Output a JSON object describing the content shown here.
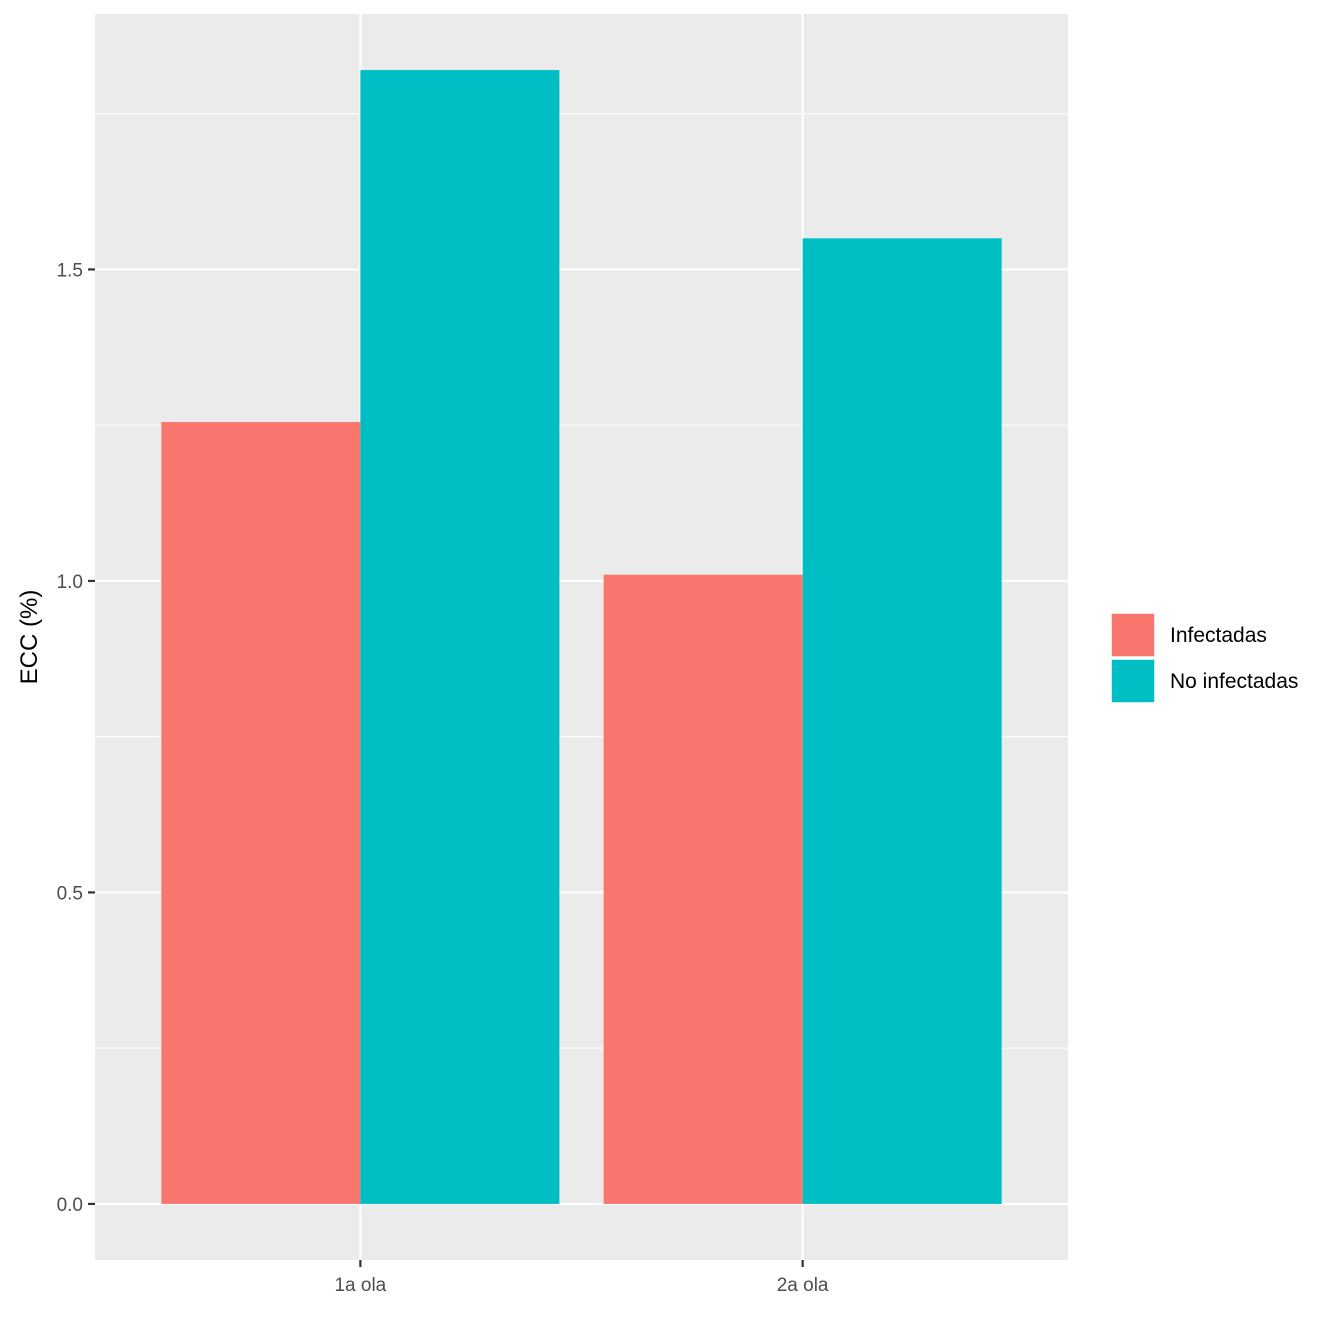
{
  "chart_data": {
    "type": "bar",
    "title": "",
    "xlabel": "",
    "ylabel": "ECC (%)",
    "categories": [
      "1a ola",
      "2a ola"
    ],
    "series": [
      {
        "name": "Infectadas",
        "color": "#F8766D",
        "values": [
          1.255,
          1.01
        ]
      },
      {
        "name": "No infectadas",
        "color": "#00BFC4",
        "values": [
          1.82,
          1.55
        ]
      }
    ],
    "ylim": [
      -0.09,
      1.91
    ],
    "y_ticks": [
      0.0,
      0.5,
      1.0,
      1.5
    ],
    "y_tick_labels": [
      "0.0",
      "0.5",
      "1.0",
      "1.5"
    ],
    "y_minor_ticks": [
      0.25,
      0.75,
      1.25,
      1.75
    ],
    "grid": true,
    "panel_background": "#EBEBEB",
    "grid_color": "#FFFFFF",
    "legend_position": "right"
  }
}
